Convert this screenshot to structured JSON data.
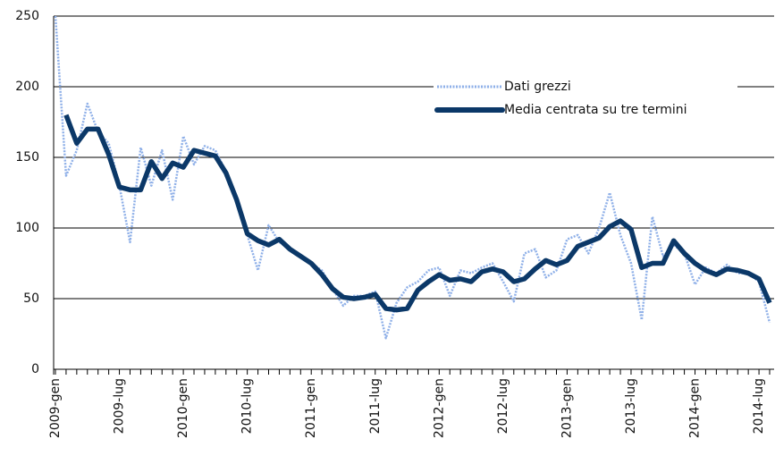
{
  "chart_data": {
    "type": "line",
    "categories": [
      "2009-gen",
      null,
      null,
      null,
      null,
      null,
      "2009-lug",
      null,
      null,
      null,
      null,
      null,
      "2010-gen",
      null,
      null,
      null,
      null,
      null,
      "2010-lug",
      null,
      null,
      null,
      null,
      null,
      "2011-gen",
      null,
      null,
      null,
      null,
      null,
      "2011-lug",
      null,
      null,
      null,
      null,
      null,
      "2012-gen",
      null,
      null,
      null,
      null,
      null,
      "2012-lug",
      null,
      null,
      null,
      null,
      null,
      "2013-gen",
      null,
      null,
      null,
      null,
      null,
      "2013-lug",
      null,
      null,
      null,
      null,
      null,
      "2014-gen",
      null,
      null,
      null,
      null,
      null,
      "2014-lug",
      null
    ],
    "series": [
      {
        "name": "Dati grezzi",
        "color": "#8fb0e8",
        "values": [
          250,
          137,
          155,
          188,
          168,
          160,
          130,
          90,
          157,
          130,
          155,
          120,
          165,
          145,
          158,
          155,
          140,
          118,
          95,
          70,
          102,
          90,
          85,
          80,
          75,
          70,
          57,
          45,
          52,
          52,
          55,
          22,
          47,
          58,
          62,
          70,
          72,
          52,
          70,
          68,
          72,
          75,
          62,
          48,
          82,
          85,
          65,
          70,
          92,
          95,
          82,
          100,
          125,
          95,
          75,
          35,
          108,
          80,
          88,
          82,
          60,
          72,
          68,
          74,
          68,
          68,
          62,
          33
        ]
      },
      {
        "name": "Media centrata su tre termini",
        "color": "#0b3868",
        "values": [
          null,
          180,
          160,
          170,
          170,
          152,
          129,
          127,
          127,
          147,
          135,
          146,
          143,
          155,
          153,
          151,
          139,
          120,
          96,
          91,
          88,
          92,
          85,
          80,
          75,
          67,
          57,
          51,
          50,
          51,
          53,
          43,
          42,
          43,
          56,
          62,
          67,
          63,
          64,
          62,
          69,
          71,
          69,
          62,
          64,
          71,
          77,
          74,
          77,
          87,
          90,
          93,
          101,
          105,
          99,
          72,
          75,
          75,
          91,
          82,
          75,
          70,
          67,
          71,
          70,
          68,
          64,
          47
        ]
      }
    ],
    "ylim": [
      0,
      250
    ],
    "yticks": [
      0,
      50,
      100,
      150,
      200,
      250
    ],
    "grid": true
  }
}
